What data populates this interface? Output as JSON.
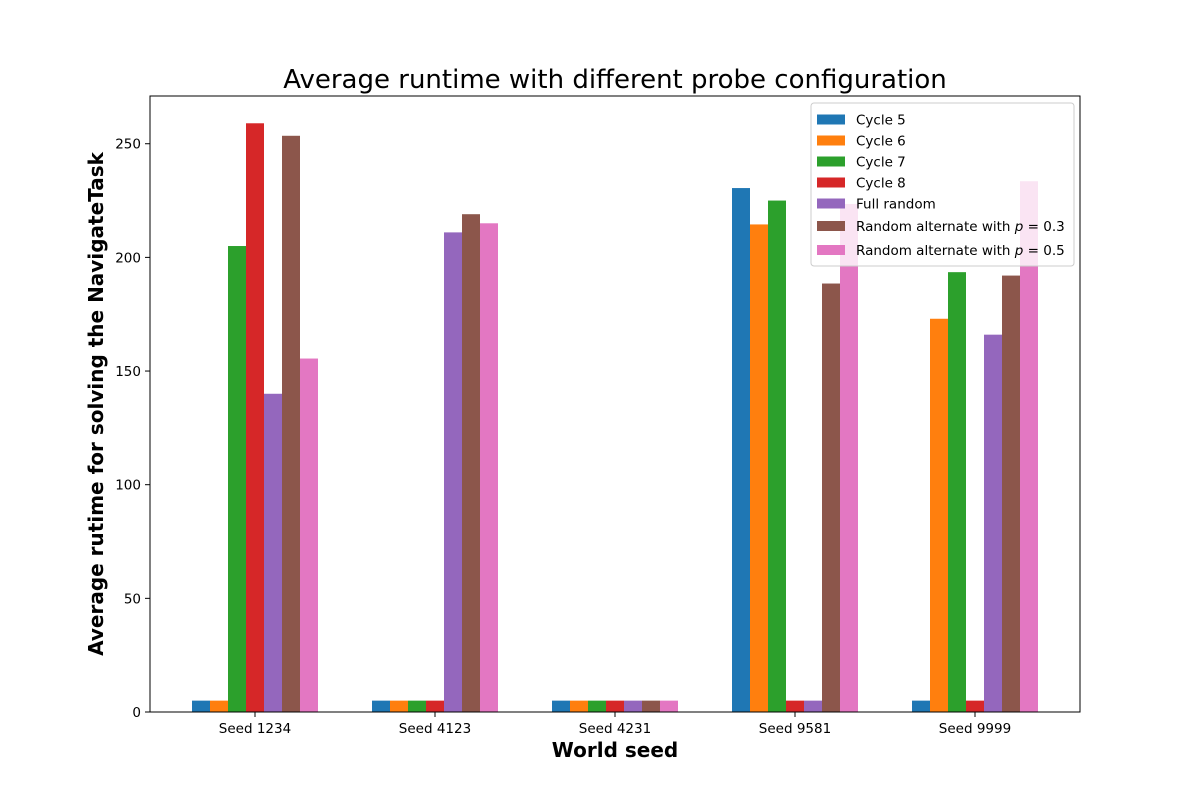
{
  "chart_data": {
    "type": "bar",
    "title": "Average runtime with different probe configuration",
    "xlabel": "World seed",
    "ylabel": "Average rutime for solving the NavigateTask",
    "categories": [
      "Seed 1234",
      "Seed 4123",
      "Seed 4231",
      "Seed 9581",
      "Seed 9999"
    ],
    "ylim": [
      0,
      271
    ],
    "yticks": [
      0,
      50,
      100,
      150,
      200,
      250
    ],
    "grid": false,
    "legend_position": "top-right",
    "series": [
      {
        "name": "Cycle 5",
        "color": "#1f77b4",
        "values": [
          5,
          5,
          5,
          230.5,
          5
        ]
      },
      {
        "name": "Cycle 6",
        "color": "#ff7f0e",
        "values": [
          5,
          5,
          5,
          214.5,
          173
        ]
      },
      {
        "name": "Cycle 7",
        "color": "#2ca02c",
        "values": [
          205,
          5,
          5,
          225,
          193.5
        ]
      },
      {
        "name": "Cycle 8",
        "color": "#d62728",
        "values": [
          259,
          5,
          5,
          5,
          5
        ]
      },
      {
        "name": "Full random",
        "color": "#9467bd",
        "values": [
          140,
          211,
          5,
          5,
          166
        ]
      },
      {
        "name": "Random alternate with p = 0.3",
        "color": "#8c564b",
        "values": [
          253.5,
          219,
          5,
          188.5,
          192
        ]
      },
      {
        "name": "Random alternate with p = 0.5",
        "color": "#e377c2",
        "values": [
          155.5,
          215,
          5,
          223.5,
          233.5
        ]
      }
    ]
  }
}
